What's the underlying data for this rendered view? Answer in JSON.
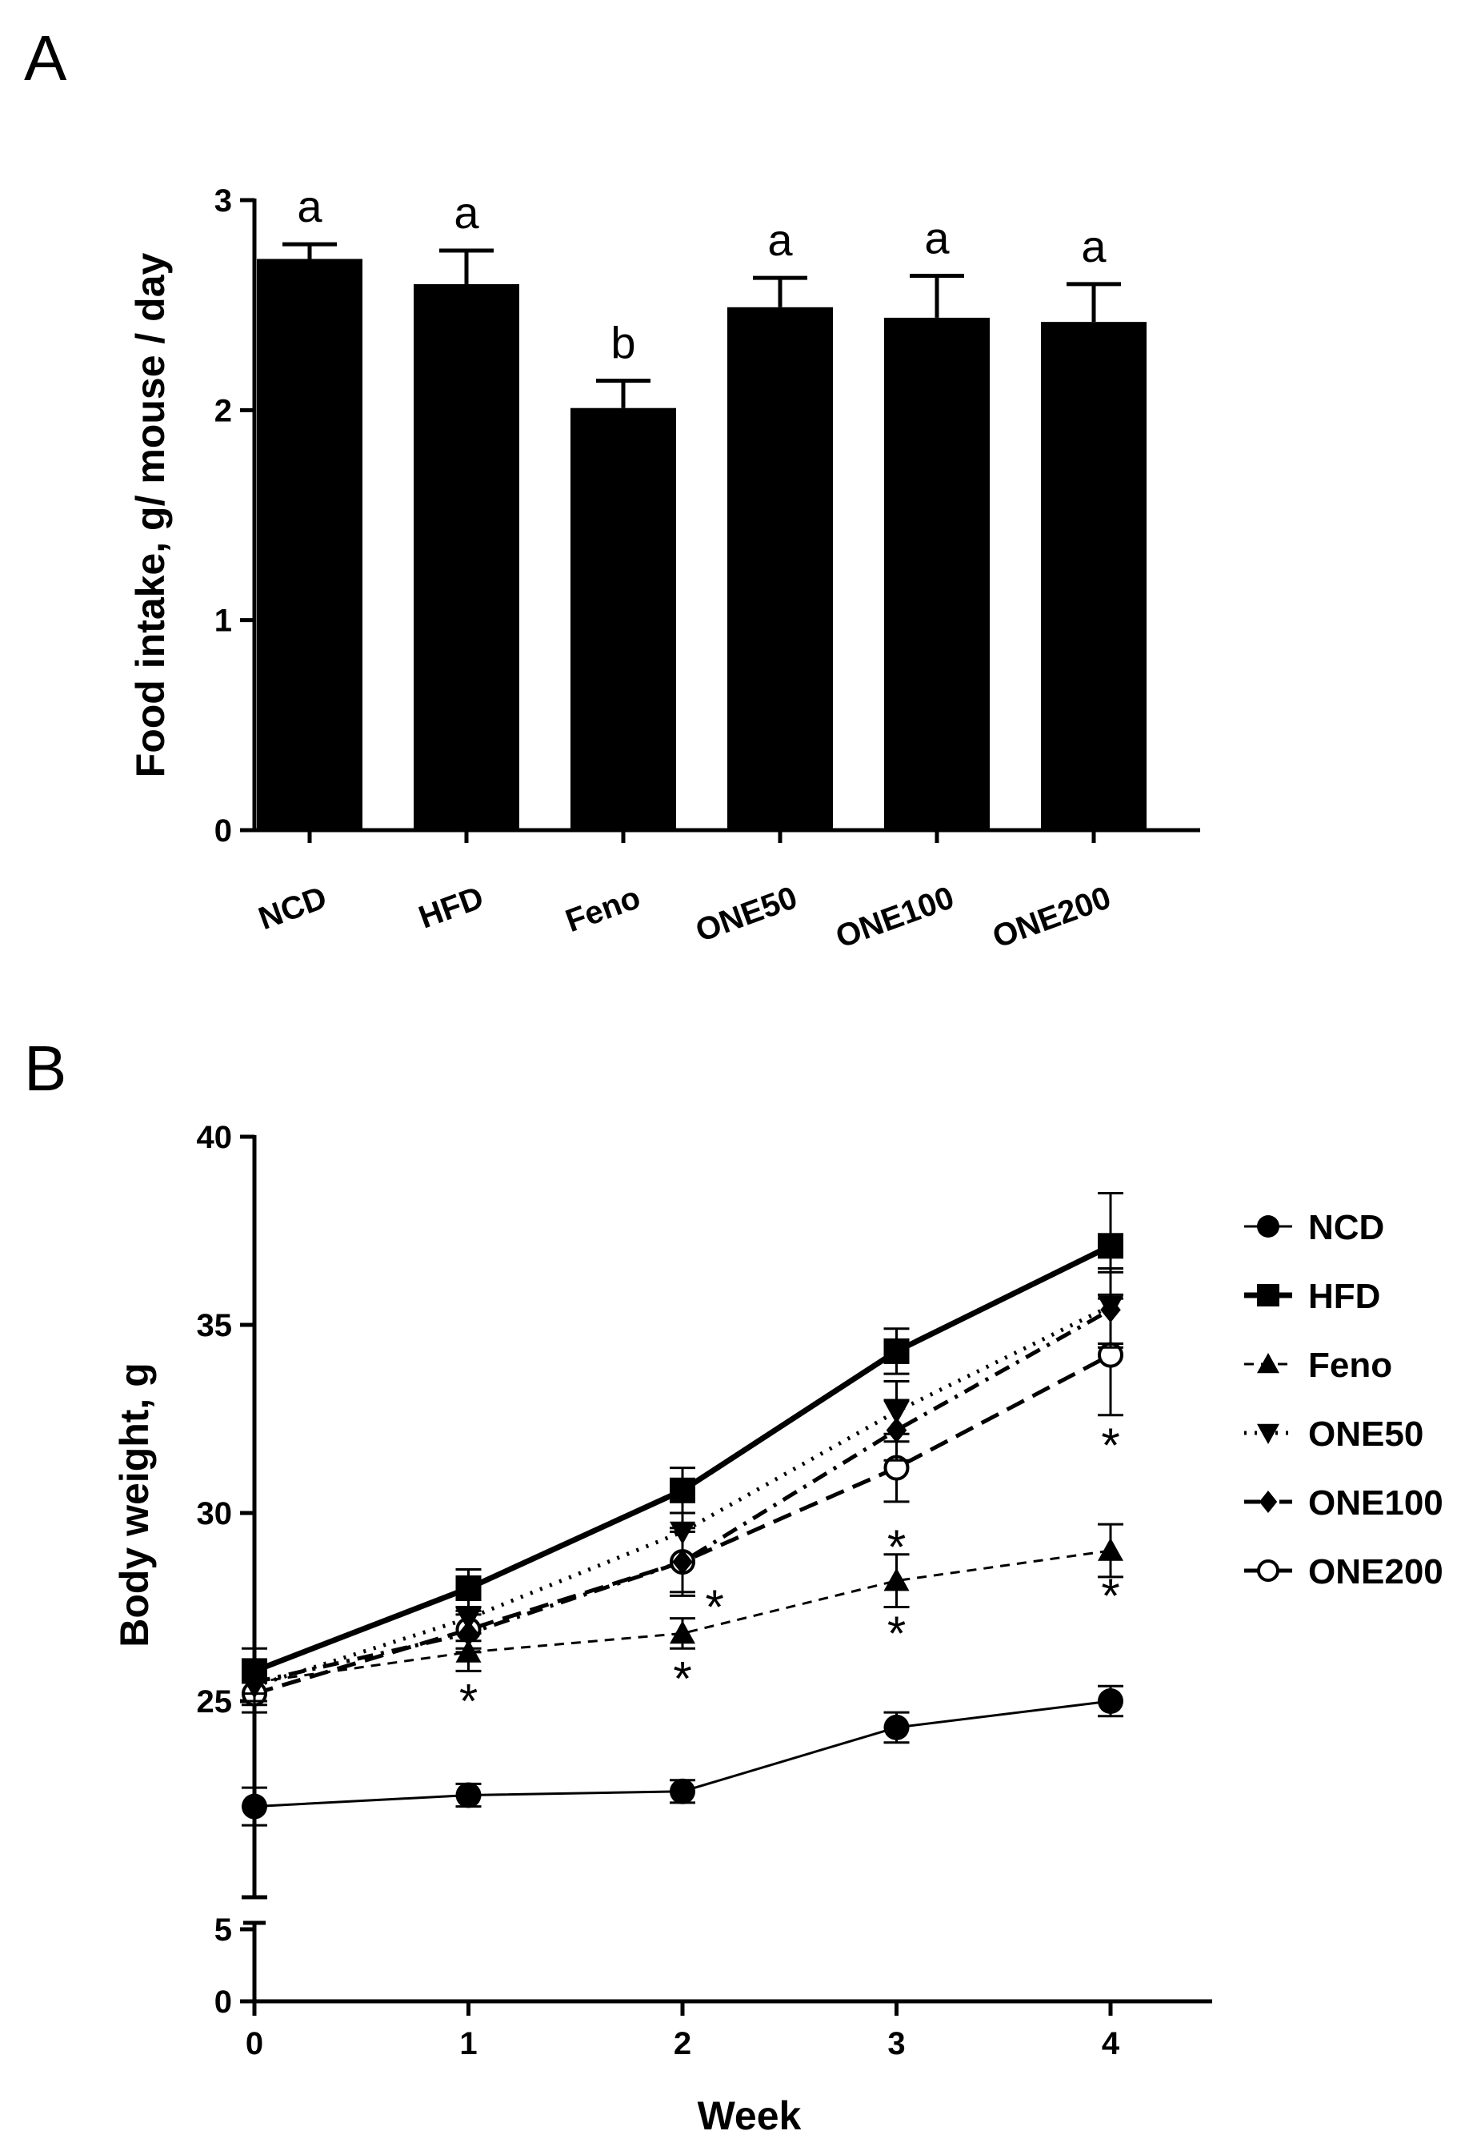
{
  "chart_data": [
    {
      "panel": "A",
      "type": "bar",
      "title": "",
      "xlabel": "",
      "ylabel": "Food intake, g/ mouse / day",
      "ylim": [
        0,
        3
      ],
      "yticks": [
        "0",
        "1",
        "2",
        "3"
      ],
      "categories": [
        "NCD",
        "HFD",
        "Feno",
        "ONE50",
        "ONE100",
        "ONE200"
      ],
      "values": [
        2.72,
        2.6,
        2.01,
        2.49,
        2.44,
        2.42
      ],
      "errors": [
        0.07,
        0.16,
        0.13,
        0.14,
        0.2,
        0.18
      ],
      "annotations": [
        "a",
        "a",
        "b",
        "a",
        "a",
        "a"
      ]
    },
    {
      "panel": "B",
      "type": "line",
      "title": "",
      "xlabel": "Week",
      "ylabel": "Body weight, g",
      "x": [
        0,
        1,
        2,
        3,
        4
      ],
      "xticks": [
        "0",
        "1",
        "2",
        "3",
        "4"
      ],
      "yticks_lower": [
        "0",
        "5"
      ],
      "yticks_upper": [
        "25",
        "30",
        "35",
        "40"
      ],
      "ylim_lower": [
        0,
        5
      ],
      "ylim_upper": [
        20,
        40
      ],
      "legend_position": "right",
      "series": [
        {
          "name": "NCD",
          "marker": "circle",
          "line": "thin-solid",
          "values": [
            22.2,
            22.5,
            22.6,
            24.3,
            25.0
          ],
          "errors": [
            0.5,
            0.3,
            0.3,
            0.4,
            0.4
          ]
        },
        {
          "name": "HFD",
          "marker": "square",
          "line": "thick-solid",
          "values": [
            25.8,
            28.0,
            30.6,
            34.3,
            37.1
          ],
          "errors": [
            0.6,
            0.5,
            0.6,
            0.6,
            1.4
          ]
        },
        {
          "name": "Feno",
          "marker": "triangle-up",
          "line": "dashed",
          "values": [
            25.5,
            26.3,
            26.8,
            28.2,
            29.0
          ],
          "errors": [
            0.5,
            0.5,
            0.4,
            0.7,
            0.7
          ]
        },
        {
          "name": "ONE50",
          "marker": "triangle-down",
          "line": "dotted",
          "values": [
            25.4,
            27.2,
            29.5,
            32.7,
            35.5
          ],
          "errors": [
            0.5,
            0.6,
            0.8,
            0.8,
            1.0
          ]
        },
        {
          "name": "ONE100",
          "marker": "diamond",
          "line": "dash-dot",
          "values": [
            25.5,
            26.8,
            28.7,
            32.2,
            35.4
          ],
          "errors": [
            0.5,
            0.5,
            0.8,
            0.8,
            1.0
          ]
        },
        {
          "name": "ONE200",
          "marker": "circle-open",
          "line": "long-dashed",
          "values": [
            25.2,
            26.9,
            28.7,
            31.2,
            34.2
          ],
          "errors": [
            0.5,
            0.5,
            0.9,
            0.9,
            1.6
          ]
        }
      ],
      "significance_marks": [
        {
          "x": 1,
          "y": 25.2,
          "label": "*"
        },
        {
          "x": 2,
          "y": 25.8,
          "label": "*"
        },
        {
          "x": 2.15,
          "y": 27.7,
          "label": "*"
        },
        {
          "x": 3,
          "y": 27.0,
          "label": "*"
        },
        {
          "x": 3,
          "y": 29.3,
          "label": "*"
        },
        {
          "x": 4,
          "y": 28.0,
          "label": "*"
        },
        {
          "x": 4,
          "y": 32.0,
          "label": "*"
        }
      ]
    }
  ],
  "panel_labels": [
    "A",
    "B"
  ]
}
